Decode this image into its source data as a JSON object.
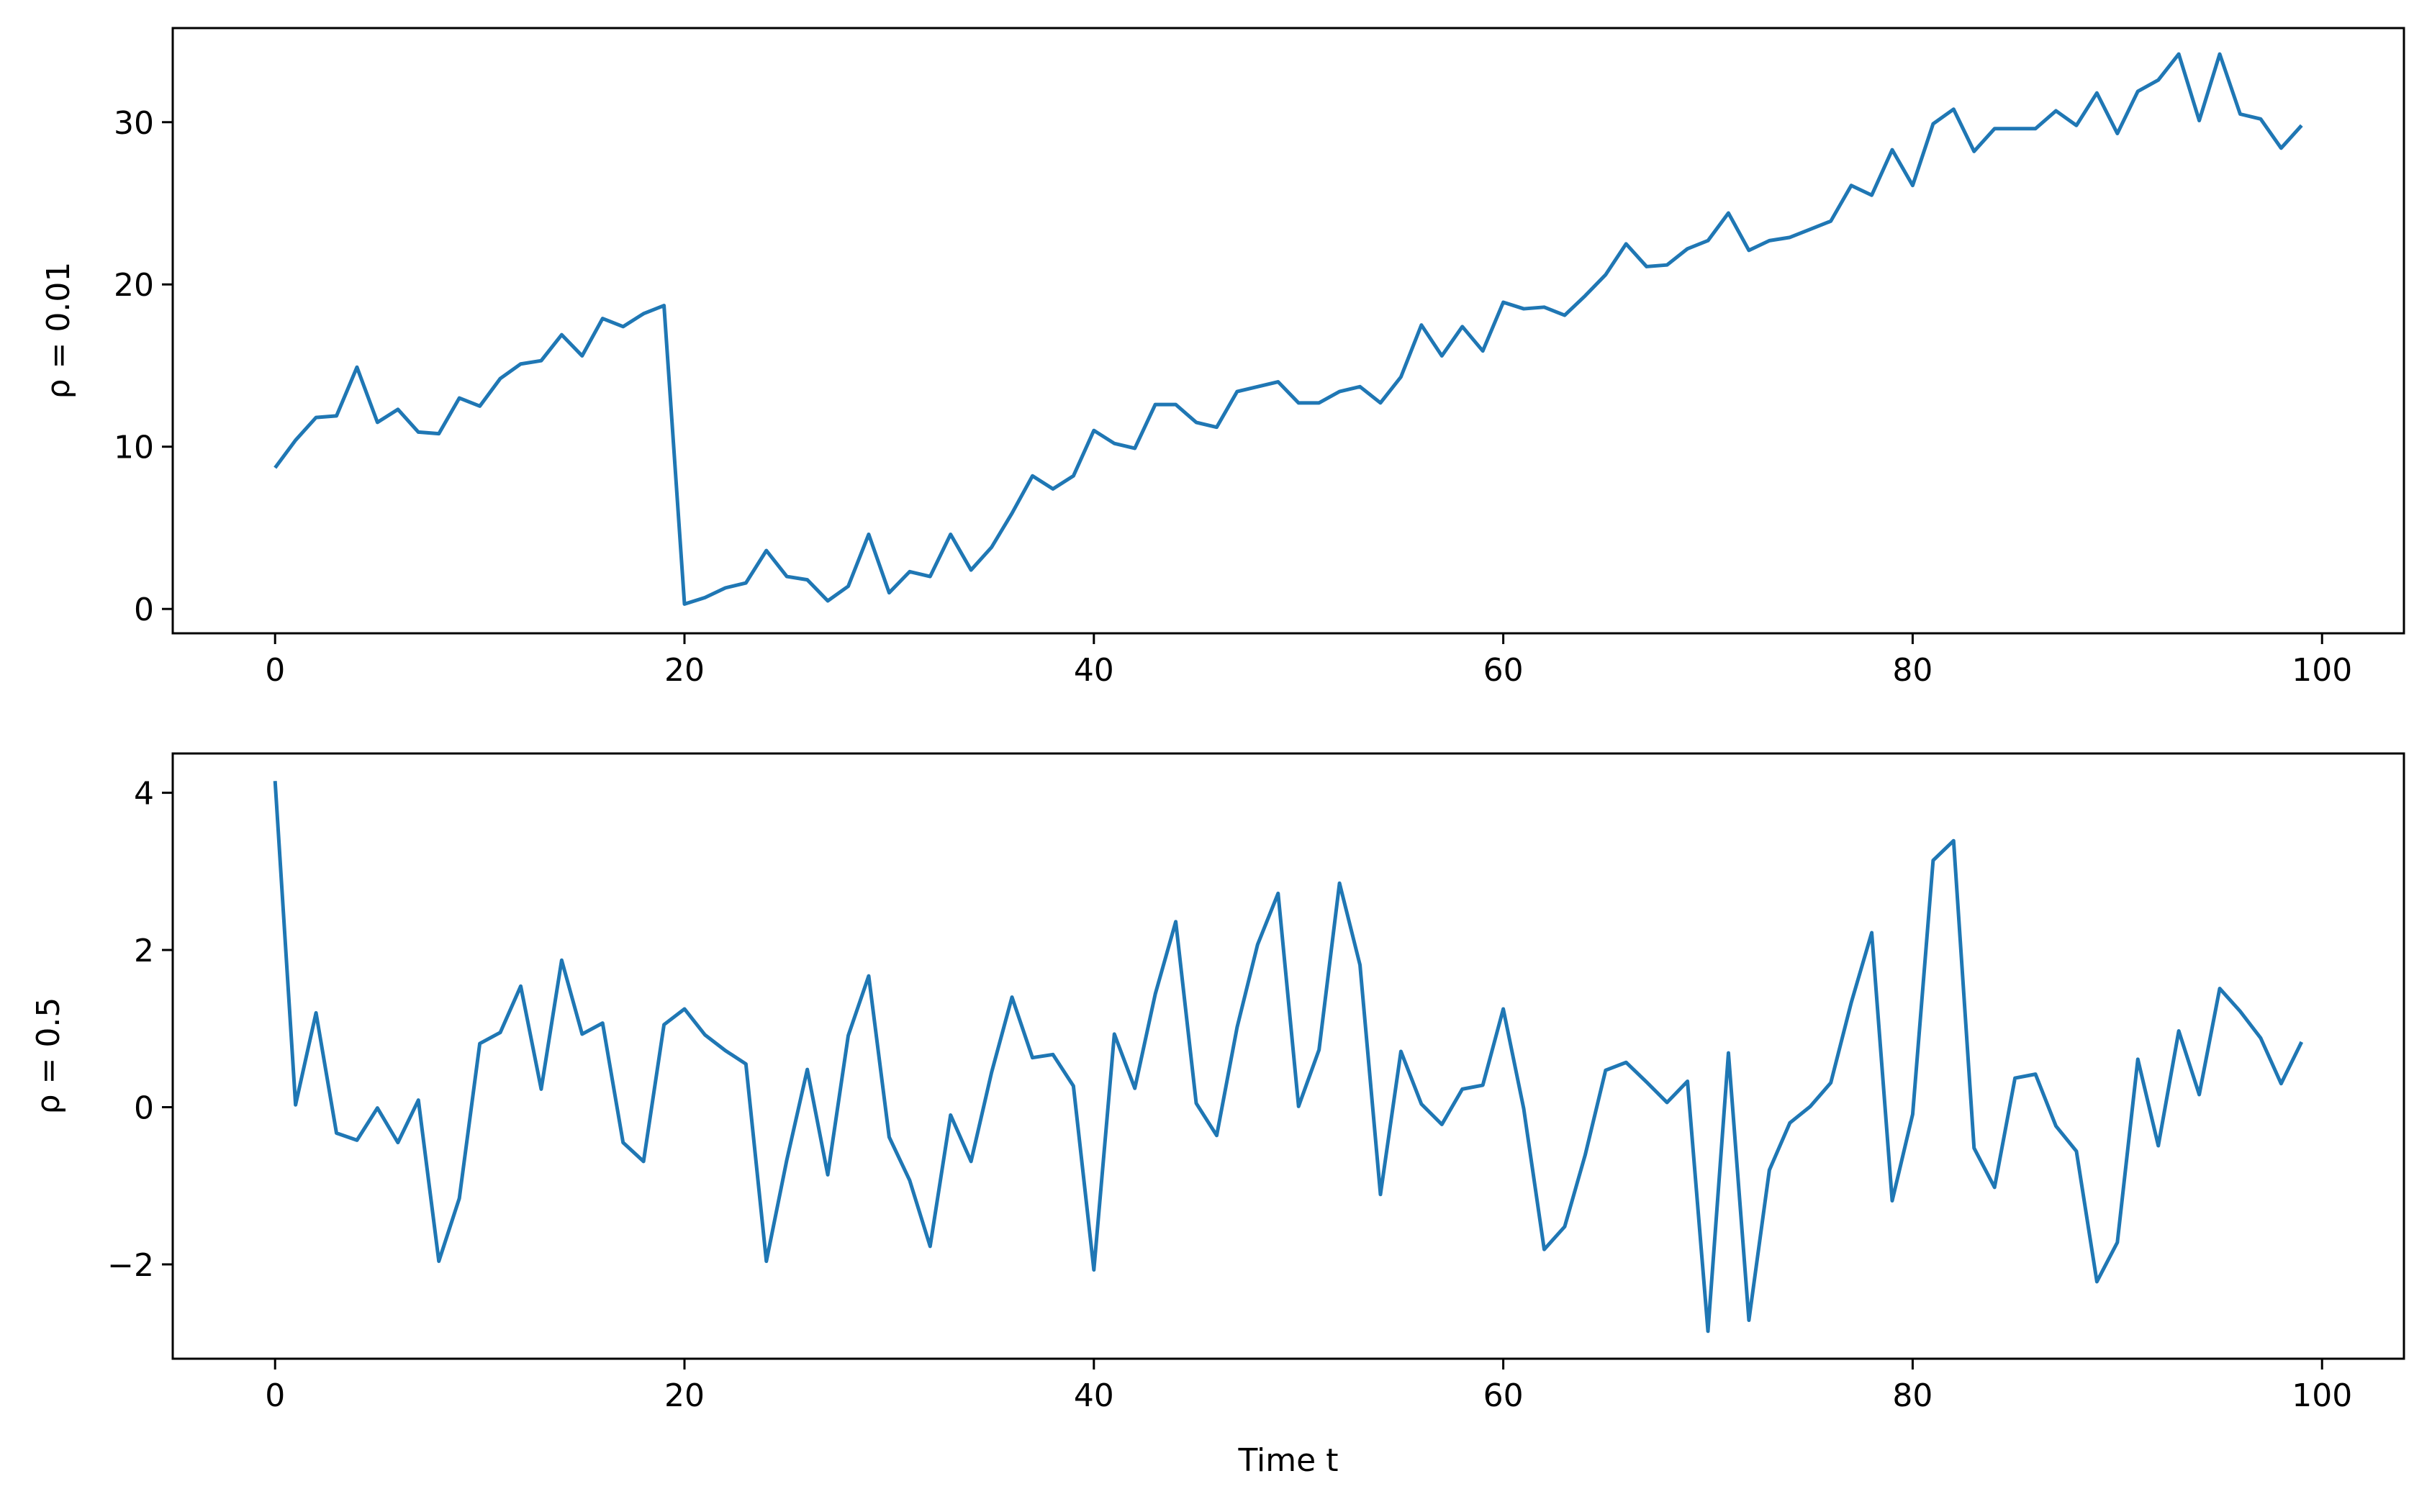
{
  "chart_data": [
    {
      "type": "line",
      "title": "",
      "xlabel": "",
      "ylabel": "ρ = 0.01",
      "xlim": [
        -5,
        104
      ],
      "ylim": [
        -1.5,
        35.8
      ],
      "xticks": [
        0,
        20,
        40,
        60,
        80,
        100
      ],
      "yticks": [
        0,
        10,
        20,
        30
      ],
      "xtick_labels": [
        "0",
        "20",
        "40",
        "60",
        "80",
        "100"
      ],
      "ytick_labels": [
        "0",
        "10",
        "20",
        "30"
      ],
      "grid": false,
      "color": "#1f77b4",
      "series": [
        {
          "x": [
            0,
            1,
            2,
            3,
            4,
            5,
            6,
            7,
            8,
            9,
            10,
            11,
            12,
            13,
            14,
            15,
            16,
            17,
            18,
            19,
            20,
            21,
            22,
            23,
            24,
            25,
            26,
            27,
            28,
            29,
            30,
            31,
            32,
            33,
            34,
            35,
            36,
            37,
            38,
            39,
            40,
            41,
            42,
            43,
            44,
            45,
            46,
            47,
            48,
            49,
            50,
            51,
            52,
            53,
            54,
            55,
            56,
            57,
            58,
            59,
            60,
            61,
            62,
            63,
            64,
            65,
            66,
            67,
            68,
            69,
            70,
            71,
            72,
            73,
            74,
            75,
            76,
            77,
            78,
            79,
            80,
            81,
            82,
            83,
            84,
            85,
            86,
            87,
            88,
            89,
            90,
            91,
            92,
            93,
            94,
            95,
            96,
            97,
            98,
            99
          ],
          "values": [
            8.7,
            10.4,
            11.8,
            11.9,
            14.9,
            11.5,
            12.3,
            10.9,
            10.8,
            13.0,
            12.5,
            14.2,
            15.1,
            15.3,
            16.9,
            15.6,
            17.9,
            17.4,
            18.2,
            18.7,
            0.3,
            0.7,
            1.3,
            1.6,
            3.6,
            2.0,
            1.8,
            0.5,
            1.4,
            4.6,
            1.0,
            2.3,
            2.0,
            4.6,
            2.4,
            3.8,
            5.9,
            8.2,
            7.4,
            8.2,
            11.0,
            10.2,
            9.9,
            12.6,
            12.6,
            11.5,
            11.2,
            13.4,
            13.7,
            14.0,
            12.7,
            12.7,
            13.4,
            13.7,
            12.7,
            14.3,
            17.5,
            15.6,
            17.4,
            15.9,
            18.9,
            18.5,
            18.6,
            18.1,
            19.3,
            20.6,
            22.5,
            21.1,
            21.2,
            22.2,
            22.7,
            24.4,
            22.1,
            22.7,
            22.9,
            23.4,
            23.9,
            26.1,
            25.5,
            28.3,
            26.1,
            29.9,
            30.8,
            28.2,
            29.6,
            29.6,
            29.6,
            30.7,
            29.8,
            31.8,
            29.3,
            31.9,
            32.6,
            34.2,
            30.1,
            34.2,
            30.5,
            30.2,
            28.4,
            29.8
          ]
        }
      ]
    },
    {
      "type": "line",
      "title": "",
      "xlabel": "Time t",
      "ylabel": "ρ = 0.5",
      "xlim": [
        -5,
        104
      ],
      "ylim": [
        -3.2,
        4.5
      ],
      "xticks": [
        0,
        20,
        40,
        60,
        80,
        100
      ],
      "yticks": [
        -2,
        0,
        2,
        4
      ],
      "xtick_labels": [
        "0",
        "20",
        "40",
        "60",
        "80",
        "100"
      ],
      "ytick_labels": [
        "−2",
        "0",
        "2",
        "4"
      ],
      "grid": false,
      "color": "#1f77b4",
      "series": [
        {
          "x": [
            0,
            1,
            2,
            3,
            4,
            5,
            6,
            7,
            8,
            9,
            10,
            11,
            12,
            13,
            14,
            15,
            16,
            17,
            18,
            19,
            20,
            21,
            22,
            23,
            24,
            25,
            26,
            27,
            28,
            29,
            30,
            31,
            32,
            33,
            34,
            35,
            36,
            37,
            38,
            39,
            40,
            41,
            42,
            43,
            44,
            45,
            46,
            47,
            48,
            49,
            50,
            51,
            52,
            53,
            54,
            55,
            56,
            57,
            58,
            59,
            60,
            61,
            62,
            63,
            64,
            65,
            66,
            67,
            68,
            69,
            70,
            71,
            72,
            73,
            74,
            75,
            76,
            77,
            78,
            79,
            80,
            81,
            82,
            83,
            84,
            85,
            86,
            87,
            88,
            89,
            90,
            91,
            92,
            93,
            94,
            95,
            96,
            97,
            98,
            99
          ],
          "values": [
            4.15,
            0.03,
            1.2,
            -0.33,
            -0.42,
            -0.01,
            -0.45,
            0.09,
            -1.96,
            -1.16,
            0.81,
            0.95,
            1.54,
            0.23,
            1.87,
            0.93,
            1.07,
            -0.45,
            -0.69,
            1.05,
            1.25,
            0.92,
            0.72,
            0.55,
            -1.96,
            -0.67,
            0.48,
            -0.86,
            0.91,
            1.67,
            -0.38,
            -0.93,
            -1.77,
            -0.1,
            -0.69,
            0.44,
            1.4,
            0.63,
            0.67,
            0.27,
            -2.07,
            0.93,
            0.24,
            1.44,
            2.36,
            0.05,
            -0.36,
            1.02,
            2.07,
            2.72,
            0.01,
            0.73,
            2.85,
            1.81,
            -1.11,
            0.71,
            0.04,
            -0.22,
            0.23,
            0.28,
            1.25,
            -0.02,
            -1.81,
            -1.52,
            -0.61,
            0.47,
            0.57,
            0.32,
            0.06,
            0.33,
            -2.85,
            0.69,
            -2.71,
            -0.8,
            -0.2,
            0.01,
            0.31,
            1.33,
            2.22,
            -1.19,
            -0.09,
            3.14,
            3.39,
            -0.52,
            -1.02,
            0.37,
            0.42,
            -0.24,
            -0.56,
            -2.22,
            -1.72,
            0.61,
            -0.49,
            0.97,
            0.16,
            1.51,
            1.22,
            0.88,
            0.3,
            0.83
          ]
        }
      ]
    }
  ]
}
